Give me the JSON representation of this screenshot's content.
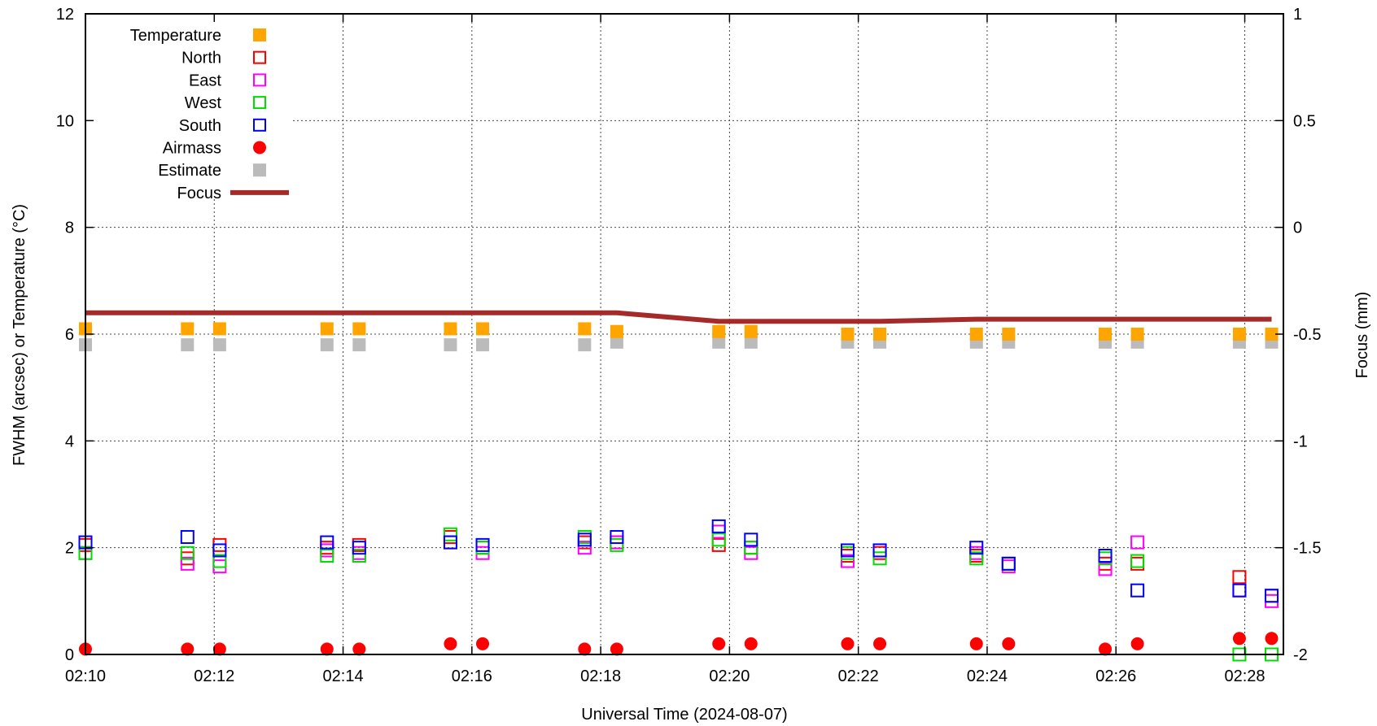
{
  "chart_data": {
    "type": "scatter",
    "xlabel": "Universal Time (2024-08-07)",
    "ylabel": "FWHM (arcsec) or Temperature (°C)",
    "y2label": "Focus (mm)",
    "x_range_minutes": [
      0,
      18.6
    ],
    "ylim": [
      0,
      12
    ],
    "y2lim": [
      -2,
      1
    ],
    "x_tick_labels": [
      "02:10",
      "02:12",
      "02:14",
      "02:16",
      "02:18",
      "02:20",
      "02:22",
      "02:24",
      "02:26",
      "02:28"
    ],
    "y_tick_labels": [
      "0",
      "2",
      "4",
      "6",
      "8",
      "10",
      "12"
    ],
    "y2_tick_labels": [
      "-2",
      "-1.5",
      "-1",
      "-0.5",
      "0",
      "0.5",
      "1"
    ],
    "grid": true,
    "legend_position": "top-left",
    "times": [
      "02:10:00",
      "02:11:35",
      "02:12:05",
      "02:13:45",
      "02:14:15",
      "02:15:40",
      "02:16:10",
      "02:17:45",
      "02:18:15",
      "02:19:50",
      "02:20:20",
      "02:21:50",
      "02:22:20",
      "02:23:50",
      "02:24:20",
      "02:25:50",
      "02:26:20",
      "02:27:55",
      "02:28:25"
    ],
    "series": [
      {
        "name": "Temperature",
        "marker": "filled-square",
        "color": "#ffa500",
        "values": [
          6.1,
          6.1,
          6.1,
          6.1,
          6.1,
          6.1,
          6.1,
          6.1,
          6.05,
          6.05,
          6.05,
          6.0,
          6.0,
          6.0,
          6.0,
          6.0,
          6.0,
          6.0,
          6.0
        ]
      },
      {
        "name": "North",
        "marker": "open-square",
        "color": "#ff0000",
        "values": [
          2.05,
          1.8,
          2.05,
          2.0,
          2.05,
          2.2,
          2.0,
          2.1,
          2.1,
          2.05,
          2.0,
          1.85,
          1.9,
          1.85,
          1.7,
          1.7,
          1.7,
          1.45,
          1.1
        ]
      },
      {
        "name": "East",
        "marker": "open-square",
        "color": "#ff00ff",
        "values": [
          1.9,
          1.7,
          1.65,
          1.95,
          1.9,
          2.1,
          1.9,
          2.0,
          2.1,
          2.3,
          1.9,
          1.75,
          1.95,
          1.9,
          1.65,
          1.6,
          2.1,
          1.2,
          1.0
        ]
      },
      {
        "name": "West",
        "marker": "open-square",
        "color": "#00dd00",
        "values": [
          1.9,
          1.9,
          1.75,
          1.85,
          1.85,
          2.25,
          2.0,
          2.2,
          2.05,
          2.15,
          2.0,
          1.9,
          1.8,
          1.8,
          1.7,
          1.8,
          1.75,
          0.0,
          0.0
        ]
      },
      {
        "name": "South",
        "marker": "open-square",
        "color": "#0000ff",
        "values": [
          2.1,
          2.2,
          1.95,
          2.1,
          2.0,
          2.1,
          2.05,
          2.15,
          2.2,
          2.4,
          2.15,
          1.95,
          1.95,
          2.0,
          1.7,
          1.85,
          1.2,
          1.2,
          1.1
        ]
      },
      {
        "name": "Airmass",
        "marker": "filled-circle",
        "color": "#ff0000",
        "values": [
          0.1,
          0.1,
          0.1,
          0.1,
          0.1,
          0.2,
          0.2,
          0.1,
          0.1,
          0.2,
          0.2,
          0.2,
          0.2,
          0.2,
          0.2,
          0.1,
          0.2,
          0.3,
          0.3
        ]
      },
      {
        "name": "Estimate",
        "marker": "filled-square",
        "color": "#bbbbbb",
        "values": [
          5.8,
          5.8,
          5.8,
          5.8,
          5.8,
          5.8,
          5.8,
          5.8,
          5.85,
          5.85,
          5.85,
          5.85,
          5.85,
          5.85,
          5.85,
          5.85,
          5.85,
          5.85,
          5.85
        ]
      },
      {
        "name": "Focus",
        "marker": "line",
        "color": "#a52a2a",
        "axis": "y2",
        "x_times": [
          "02:10:00",
          "02:18:15",
          "02:19:50",
          "02:22:20",
          "02:23:50",
          "02:28:25"
        ],
        "values": [
          -0.4,
          -0.4,
          -0.44,
          -0.44,
          -0.43,
          -0.43
        ]
      }
    ]
  }
}
